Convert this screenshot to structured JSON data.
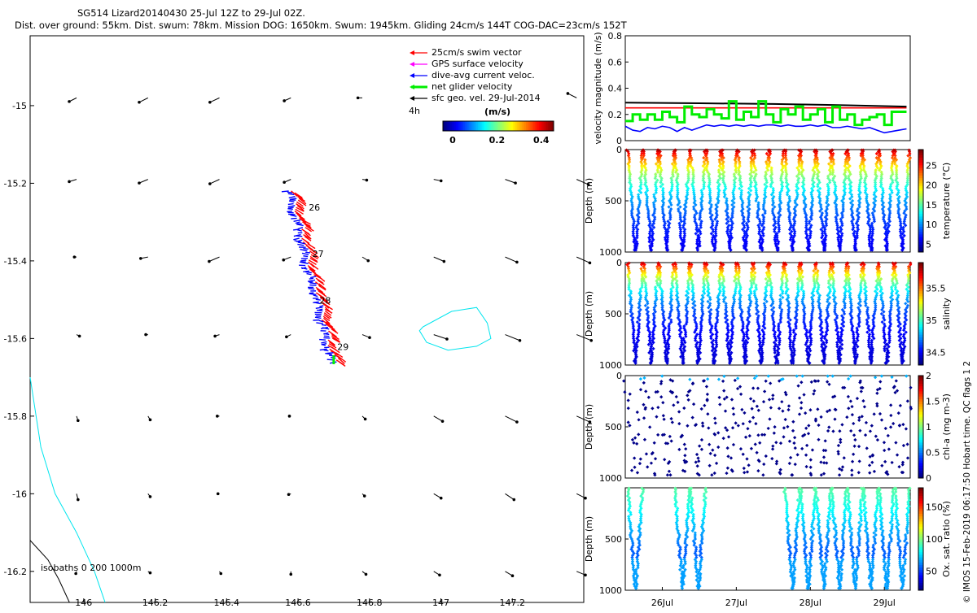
{
  "title": {
    "line1": "SG514 Lizard20140430 25-Jul 12Z to 29-Jul 02Z.",
    "line2": "Dist. over ground: 55km. Dist. swum: 78km. Mission DOG: 1650km. Swum: 1945km. Gliding 24cm/s 144T COG-DAC=23cm/s 152T"
  },
  "side_note": "© IMOS 15-Feb-2019 06:17:50 Hobart time. QC flags 1  2",
  "colors": {
    "swim": "#ff0000",
    "gps": "#ff00ff",
    "dac": "#0000ff",
    "net": "#00ee00",
    "sfc": "#000000",
    "isobath_0": "#000000",
    "isobath_200": "#00e5ee",
    "isobath_1000": "#00e5ee"
  },
  "chart_data": [
    {
      "id": "map",
      "type": "map-vector",
      "xlabel": "",
      "ylabel": "",
      "xlim": [
        145.85,
        147.4
      ],
      "ylim": [
        -16.28,
        -14.82
      ],
      "xticks": [
        "146",
        "146.2",
        "146.4",
        "146.6",
        "146.8",
        "147",
        "147.2"
      ],
      "xtick_values": [
        146,
        146.2,
        146.4,
        146.6,
        146.8,
        147,
        147.2
      ],
      "yticks": [
        "-15",
        "-15.2",
        "-15.4",
        "-15.6",
        "-15.8",
        "-16",
        "-16.2"
      ],
      "ytick_values": [
        -15,
        -15.2,
        -15.4,
        -15.6,
        -15.8,
        -16,
        -16.2
      ],
      "legend": [
        {
          "label": "25cm/s swim vector",
          "color_key": "swim"
        },
        {
          "label": "GPS surface velocity",
          "color_key": "gps"
        },
        {
          "label": "dive-avg current veloc.",
          "color_key": "dac"
        },
        {
          "label": "net glider velocity",
          "color_key": "net"
        },
        {
          "label": "sfc geo. vel. 29-Jul-2014",
          "color_key": "sfc"
        }
      ],
      "legend_extra": "4h",
      "colorbar": {
        "title": "(m/s)",
        "ticks": [
          "0",
          "0.2",
          "0.4"
        ],
        "range": [
          0,
          0.5
        ]
      },
      "isobaths_label": "isobaths 0   200  1000m",
      "day_labels": [
        "26",
        "27",
        "28",
        "29"
      ],
      "day_positions": [
        [
          146.63,
          -15.27
        ],
        [
          146.64,
          -15.39
        ],
        [
          146.66,
          -15.51
        ],
        [
          146.71,
          -15.63
        ]
      ],
      "track_start": [
        146.58,
        -15.22
      ],
      "track_end": [
        146.7,
        -15.66
      ],
      "sfc_vectors": {
        "lons": [
          145.98,
          146.18,
          146.38,
          146.58,
          146.78,
          146.98,
          147.18,
          147.38
        ],
        "lats": [
          -14.98,
          -15.19,
          -15.39,
          -15.59,
          -15.8,
          -16.0,
          -16.2
        ],
        "u": [
          [
            0.1,
            0.12,
            0.13,
            0.09,
            0.06,
            0.1,
            0.1,
            0.12
          ],
          [
            0.1,
            0.12,
            0.13,
            0.09,
            -0.06,
            -0.1,
            -0.14,
            -0.16
          ],
          [
            0.03,
            0.1,
            0.14,
            0.1,
            -0.08,
            -0.14,
            -0.16,
            -0.18
          ],
          [
            -0.04,
            0.03,
            0.06,
            0.06,
            -0.1,
            -0.18,
            -0.2,
            -0.2
          ],
          [
            -0.02,
            -0.03,
            0.03,
            0.02,
            -0.04,
            -0.12,
            -0.16,
            -0.18
          ],
          [
            -0.02,
            -0.03,
            0.02,
            0.03,
            -0.03,
            -0.1,
            -0.12,
            -0.12
          ],
          [
            0.01,
            -0.03,
            -0.02,
            0.0,
            -0.05,
            -0.08,
            -0.1,
            -0.12
          ]
        ],
        "v": [
          [
            -0.05,
            -0.06,
            -0.06,
            -0.04,
            0.0,
            0.02,
            0.05,
            0.06
          ],
          [
            -0.03,
            -0.05,
            -0.06,
            -0.04,
            -0.01,
            -0.02,
            -0.05,
            -0.07
          ],
          [
            0.0,
            -0.02,
            -0.06,
            -0.04,
            -0.05,
            -0.06,
            -0.07,
            -0.08
          ],
          [
            -0.02,
            0.0,
            -0.02,
            -0.03,
            -0.04,
            -0.06,
            -0.08,
            -0.08
          ],
          [
            -0.06,
            -0.05,
            0.0,
            0.0,
            -0.04,
            -0.07,
            -0.08,
            -0.08
          ],
          [
            -0.08,
            -0.04,
            0.0,
            -0.01,
            -0.03,
            -0.06,
            -0.08,
            -0.06
          ],
          [
            -0.03,
            -0.02,
            -0.03,
            -0.04,
            -0.04,
            -0.05,
            -0.06,
            -0.05
          ]
        ]
      },
      "contour_200": [
        [
          146.95,
          -15.57
        ],
        [
          147.03,
          -15.53
        ],
        [
          147.1,
          -15.52
        ],
        [
          147.13,
          -15.56
        ],
        [
          147.14,
          -15.6
        ],
        [
          147.1,
          -15.62
        ],
        [
          147.02,
          -15.63
        ],
        [
          146.96,
          -15.61
        ],
        [
          146.94,
          -15.58
        ],
        [
          146.95,
          -15.57
        ]
      ],
      "contour_coast": [
        [
          145.85,
          -15.7
        ],
        [
          145.88,
          -15.88
        ],
        [
          145.92,
          -16.0
        ],
        [
          145.98,
          -16.1
        ],
        [
          146.03,
          -16.2
        ],
        [
          146.06,
          -16.28
        ]
      ],
      "contour_0": [
        [
          145.85,
          -16.12
        ],
        [
          145.9,
          -16.17
        ],
        [
          145.93,
          -16.22
        ],
        [
          145.96,
          -16.28
        ]
      ]
    },
    {
      "id": "velocity",
      "type": "line",
      "ylabel": "velocity magnitude (m/s)",
      "ylim": [
        0,
        0.8
      ],
      "yticks": [
        "0",
        "0.2",
        "0.4",
        "0.6",
        "0.8"
      ],
      "ytick_values": [
        0,
        0.2,
        0.4,
        0.6,
        0.8
      ],
      "xlim": [
        25.5,
        29.35
      ],
      "series": [
        {
          "name": "swim",
          "color_key": "swim",
          "x": [
            25.5,
            29.3
          ],
          "y": [
            0.25,
            0.25
          ]
        },
        {
          "name": "sfc",
          "color_key": "sfc",
          "x": [
            25.5,
            26.5,
            27.5,
            28.5,
            29.3
          ],
          "y": [
            0.29,
            0.285,
            0.28,
            0.27,
            0.26
          ]
        },
        {
          "name": "dac",
          "color_key": "dac",
          "x": [
            25.5,
            25.6,
            25.7,
            25.8,
            25.9,
            26.0,
            26.1,
            26.2,
            26.3,
            26.4,
            26.5,
            26.6,
            26.7,
            26.8,
            26.9,
            27.0,
            27.1,
            27.2,
            27.3,
            27.4,
            27.5,
            27.6,
            27.7,
            27.8,
            27.9,
            28.0,
            28.1,
            28.2,
            28.3,
            28.4,
            28.5,
            28.6,
            28.7,
            28.8,
            28.9,
            29.0,
            29.1,
            29.2,
            29.3
          ],
          "y": [
            0.11,
            0.08,
            0.07,
            0.1,
            0.09,
            0.11,
            0.1,
            0.07,
            0.1,
            0.08,
            0.1,
            0.12,
            0.11,
            0.12,
            0.11,
            0.12,
            0.11,
            0.12,
            0.11,
            0.12,
            0.12,
            0.11,
            0.12,
            0.11,
            0.11,
            0.12,
            0.11,
            0.12,
            0.1,
            0.1,
            0.11,
            0.1,
            0.09,
            0.1,
            0.08,
            0.06,
            0.07,
            0.08,
            0.09
          ]
        },
        {
          "name": "net",
          "color_key": "net",
          "x": [
            25.5,
            25.6,
            25.7,
            25.8,
            25.9,
            26.0,
            26.1,
            26.2,
            26.3,
            26.4,
            26.5,
            26.6,
            26.7,
            26.8,
            26.9,
            27.0,
            27.1,
            27.2,
            27.3,
            27.4,
            27.5,
            27.6,
            27.7,
            27.8,
            27.9,
            28.0,
            28.1,
            28.2,
            28.3,
            28.4,
            28.5,
            28.6,
            28.7,
            28.8,
            28.9,
            29.0,
            29.1,
            29.2,
            29.3
          ],
          "y": [
            0.15,
            0.2,
            0.16,
            0.2,
            0.16,
            0.22,
            0.18,
            0.14,
            0.26,
            0.2,
            0.18,
            0.24,
            0.2,
            0.17,
            0.3,
            0.16,
            0.22,
            0.18,
            0.3,
            0.2,
            0.14,
            0.24,
            0.2,
            0.26,
            0.16,
            0.2,
            0.24,
            0.14,
            0.26,
            0.16,
            0.2,
            0.12,
            0.16,
            0.18,
            0.2,
            0.12,
            0.22,
            0.22,
            0.22
          ]
        }
      ]
    },
    {
      "id": "temperature",
      "type": "scatter-profile",
      "ylabel": "Depth (m)",
      "clabel": "temperature (°C)",
      "ylim": [
        1000,
        0
      ],
      "yticks": [
        "0",
        "500",
        "1000"
      ],
      "ytick_values": [
        0,
        500,
        1000
      ],
      "clim": [
        3,
        29
      ],
      "cticks": [
        "5",
        "10",
        "15",
        "20",
        "25"
      ],
      "ctick_values": [
        5,
        10,
        15,
        20,
        25
      ],
      "dives": 18,
      "max_depth": 1000,
      "surface_value": 28,
      "deep_value": 4
    },
    {
      "id": "salinity",
      "type": "scatter-profile",
      "ylabel": "Depth (m)",
      "clabel": "salinity",
      "ylim": [
        1000,
        0
      ],
      "yticks": [
        "0",
        "500",
        "1000"
      ],
      "ytick_values": [
        0,
        500,
        1000
      ],
      "clim": [
        34.3,
        35.9
      ],
      "cticks": [
        "34.5",
        "35",
        "35.5"
      ],
      "ctick_values": [
        34.5,
        35,
        35.5
      ],
      "dives": 18,
      "max_depth": 1000,
      "surface_value": 35.8,
      "deep_value": 34.4
    },
    {
      "id": "chla",
      "type": "scatter-profile",
      "ylabel": "Depth (m)",
      "clabel": "chl-a (mg m-3)",
      "ylim": [
        1000,
        0
      ],
      "yticks": [
        "0",
        "500",
        "1000"
      ],
      "ytick_values": [
        0,
        500,
        1000
      ],
      "clim": [
        0,
        2
      ],
      "cticks": [
        "0",
        "0.5",
        "1",
        "1.5",
        "2"
      ],
      "ctick_values": [
        0,
        0.5,
        1,
        1.5,
        2
      ],
      "dives": 18,
      "max_depth": 1000,
      "surface_value": 0.6,
      "deep_value": 0.02
    },
    {
      "id": "oxygen",
      "type": "scatter-profile",
      "ylabel": "Depth (m)",
      "clabel": "Ox. sat. ratio (%)",
      "ylim": [
        1000,
        0
      ],
      "yticks": [
        "500",
        "1000"
      ],
      "ytick_values": [
        500,
        1000
      ],
      "clim": [
        20,
        180
      ],
      "cticks": [
        "50",
        "100",
        "150"
      ],
      "ctick_values": [
        50,
        100,
        150
      ],
      "xlim": [
        25.5,
        29.35
      ],
      "xticks": [
        "26Jul",
        "27Jul",
        "28Jul",
        "29Jul"
      ],
      "xtick_values": [
        26,
        27,
        28,
        29
      ],
      "dives": 18,
      "max_depth": 1000,
      "surface_value": 95,
      "deep_value": 55,
      "dive_present": [
        1,
        0,
        0,
        1,
        1,
        0,
        0,
        0,
        0,
        0,
        1,
        1,
        1,
        1,
        1,
        1,
        1,
        1
      ]
    }
  ]
}
